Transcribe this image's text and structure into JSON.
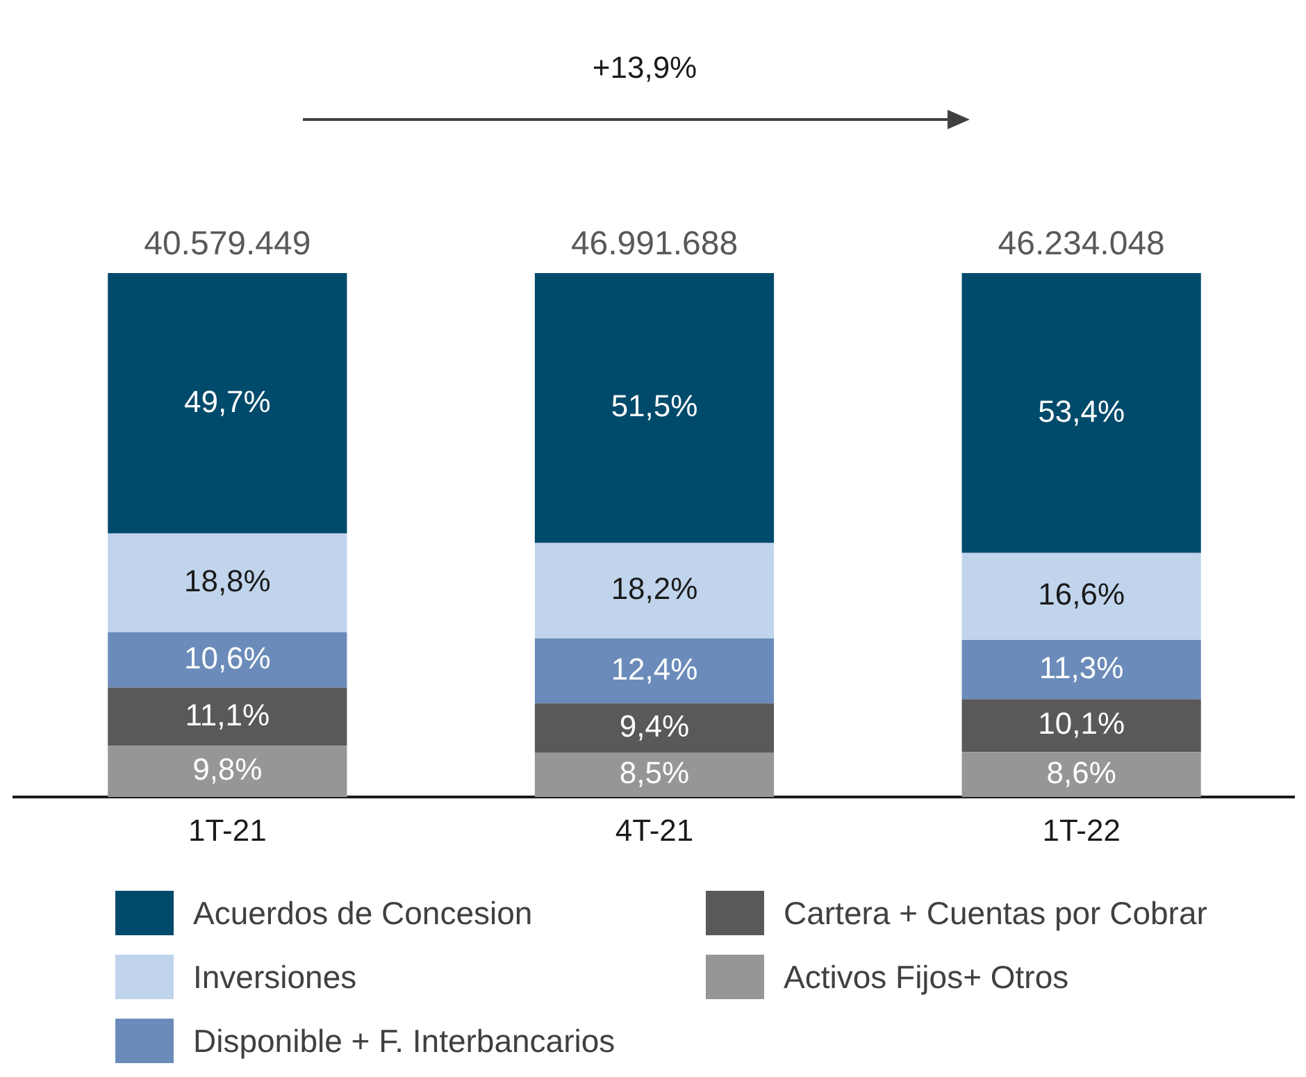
{
  "chart_data": {
    "type": "bar",
    "stacked": true,
    "grid": false,
    "legend": "bottom",
    "tick_labels": "x",
    "ylim": [
      0,
      100
    ],
    "annotations": [
      "+13,9%",
      {
        "text": "40.579.449",
        "x": "1T-21",
        "y": 100
      },
      {
        "text": "46.991.688",
        "x": "4T-21",
        "y": 100
      },
      {
        "text": "46.234.048",
        "x": "1T-22",
        "y": 100
      }
    ],
    "categories": [
      "1T-21",
      "4T-21",
      "1T-22"
    ],
    "series": [
      {
        "name": "Activos Fijos+ Otros",
        "color": "#969696",
        "values": [
          9.8,
          8.5,
          8.6
        ],
        "value_labels": [
          "9,8%",
          "8,5%",
          "8,6%"
        ]
      },
      {
        "name": "Cartera + Cuentas por Cobrar",
        "color": "#595959",
        "values": [
          11.1,
          9.4,
          10.1
        ],
        "value_labels": [
          "11,1%",
          "9,4%",
          "10,1%"
        ]
      },
      {
        "name": "Disponible + F. Interbancarios",
        "color": "#6b8cba",
        "values": [
          10.6,
          12.4,
          11.3
        ],
        "value_labels": [
          "10,6%",
          "12,4%",
          "11,3%"
        ]
      },
      {
        "name": "Inversiones",
        "color": "#c0d4ec",
        "values": [
          18.8,
          18.2,
          16.6
        ],
        "value_labels": [
          "18,8%",
          "18,2%",
          "16,6%"
        ]
      },
      {
        "name": "Acuerdos de Concesion",
        "color": "#004a6b",
        "values": [
          49.7,
          51.5,
          53.4
        ],
        "value_labels": [
          "49,7%",
          "51,5%",
          "53,4%"
        ]
      }
    ]
  }
}
